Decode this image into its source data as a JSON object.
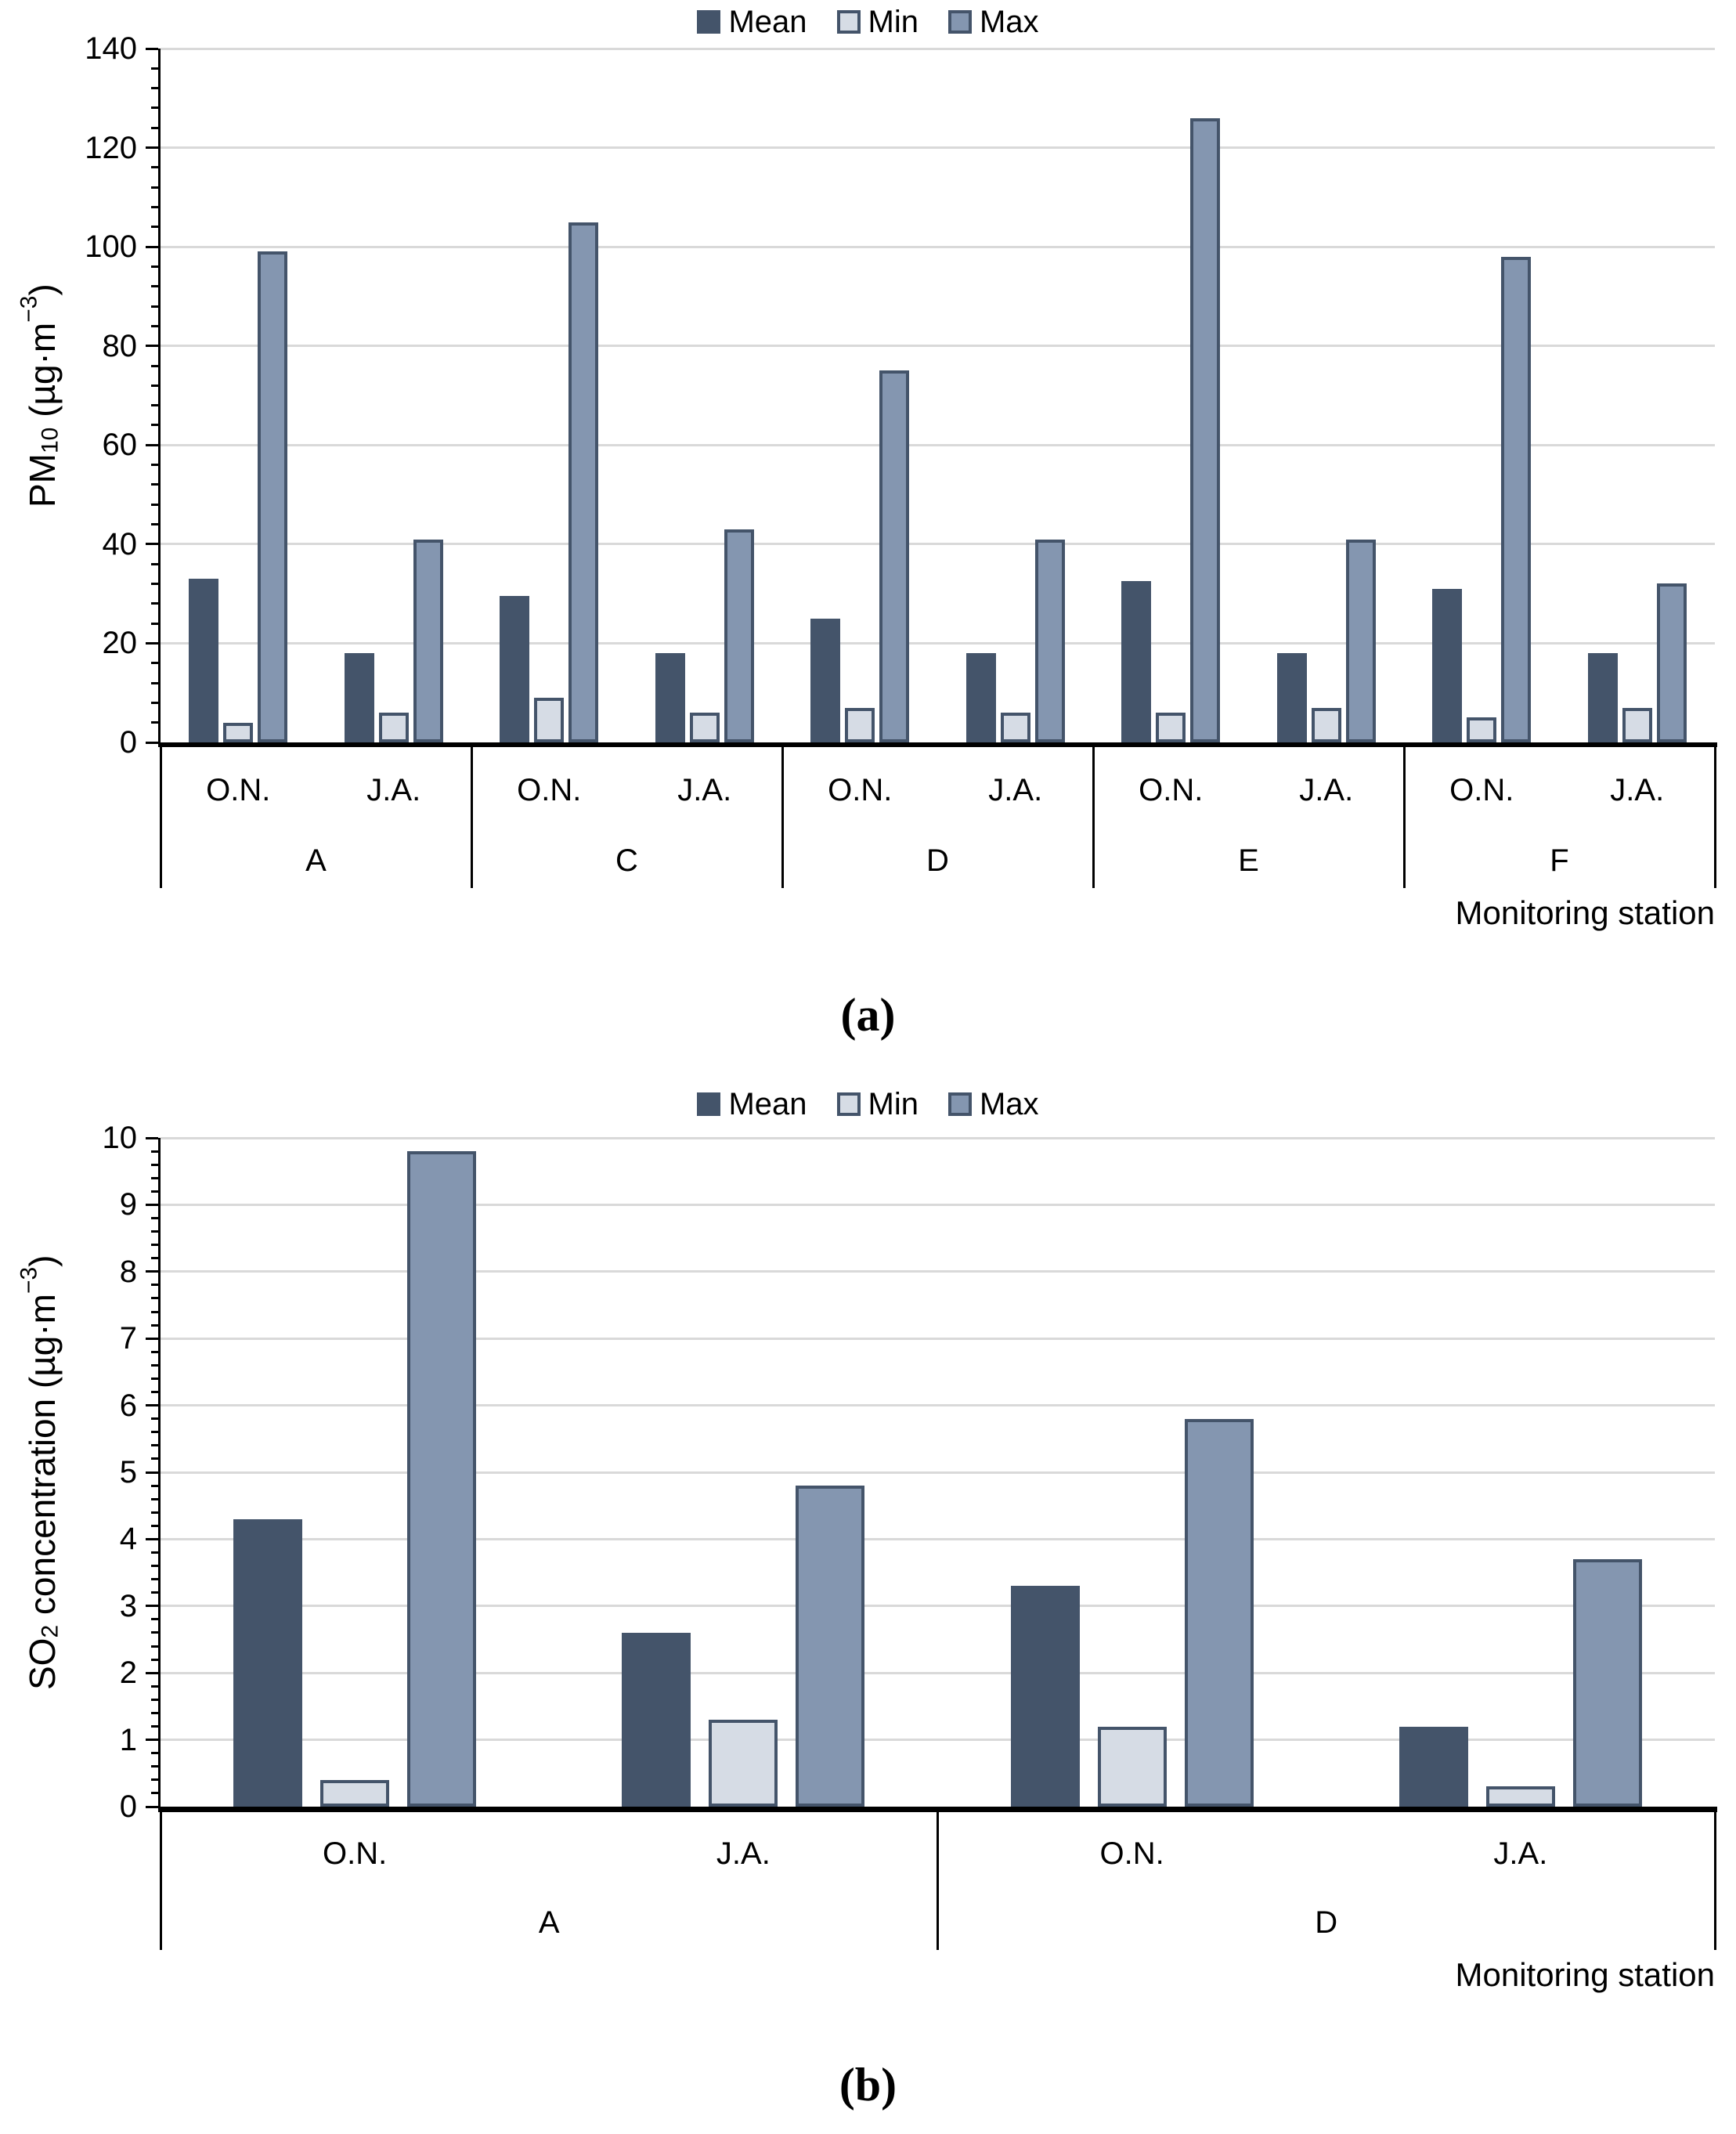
{
  "legend": {
    "items": [
      "Mean",
      "Min",
      "Max"
    ]
  },
  "colors": {
    "mean_fill": "#44546A",
    "min_fill": "#D6DCE5",
    "max_fill": "#8496B0",
    "bar_border": "#44546A",
    "gridline": "#D9D9D9",
    "axis": "#000000"
  },
  "chart_data": [
    {
      "type": "bar",
      "panel_caption": "(a)",
      "ylabel": "PM10 (µg·m−3)",
      "ylabel_parts": {
        "base": "PM",
        "sub": "10",
        "mid": " (µg·m",
        "sup": "−3",
        "end": ")"
      },
      "xlabel": "Monitoring station",
      "ylim": [
        0,
        140
      ],
      "ytick_step": 20,
      "yminor_step": 4,
      "ytick_labels": [
        "0",
        "20",
        "40",
        "60",
        "80",
        "100",
        "120",
        "140"
      ],
      "grid": true,
      "legend_position": "top-center",
      "stations": [
        "A",
        "C",
        "D",
        "E",
        "F"
      ],
      "periods": [
        "O.N.",
        "J.A."
      ],
      "categories": [
        "A O.N.",
        "A J.A.",
        "C O.N.",
        "C J.A.",
        "D O.N.",
        "D J.A.",
        "E O.N.",
        "E J.A.",
        "F O.N.",
        "F J.A."
      ],
      "series": [
        {
          "name": "Mean",
          "values": [
            33,
            18,
            29.5,
            18,
            25,
            18,
            32.5,
            18,
            31,
            18
          ]
        },
        {
          "name": "Min",
          "values": [
            4,
            6,
            9,
            6,
            7,
            6,
            6,
            7,
            5,
            7
          ]
        },
        {
          "name": "Max",
          "values": [
            99,
            41,
            105,
            43,
            75,
            41,
            126,
            41,
            98,
            32
          ]
        }
      ]
    },
    {
      "type": "bar",
      "panel_caption": "(b)",
      "ylabel": "SO2 concentration (µg·m−3)",
      "ylabel_parts": {
        "base": "SO",
        "sub": "2",
        "mid": " concentration (µg·m",
        "sup": "−3",
        "end": ")"
      },
      "xlabel": "Monitoring station",
      "ylim": [
        0,
        10
      ],
      "ytick_step": 1,
      "yminor_step": 0.2,
      "ytick_labels": [
        "0",
        "1",
        "2",
        "3",
        "4",
        "5",
        "6",
        "7",
        "8",
        "9",
        "10"
      ],
      "grid": true,
      "legend_position": "top-center",
      "stations": [
        "A",
        "D"
      ],
      "periods": [
        "O.N.",
        "J.A."
      ],
      "categories": [
        "A O.N.",
        "A J.A.",
        "D O.N.",
        "D J.A."
      ],
      "series": [
        {
          "name": "Mean",
          "values": [
            4.3,
            2.6,
            3.3,
            1.2
          ]
        },
        {
          "name": "Min",
          "values": [
            0.4,
            1.3,
            1.2,
            0.3
          ]
        },
        {
          "name": "Max",
          "values": [
            9.8,
            4.8,
            5.8,
            3.7
          ]
        }
      ]
    }
  ]
}
